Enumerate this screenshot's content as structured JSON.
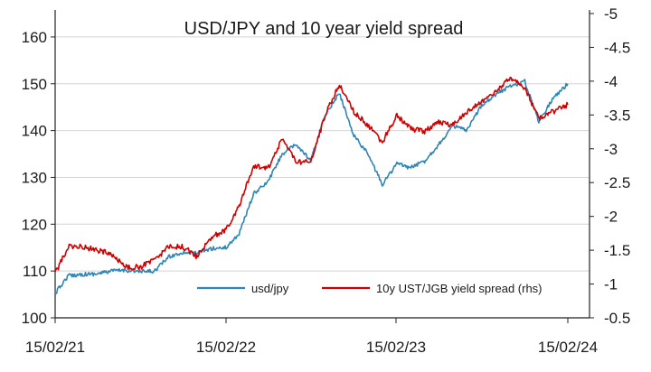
{
  "chart_data": {
    "type": "line",
    "title": "USD/JPY and 10 year yield spread",
    "x_range": [
      "2021-02-15",
      "2024-02-15"
    ],
    "x_ticks": [
      "15/02/21",
      "15/02/22",
      "15/02/23",
      "15/02/24"
    ],
    "y_left": {
      "range": [
        100,
        165
      ],
      "ticks": [
        100,
        110,
        120,
        130,
        140,
        150,
        160
      ]
    },
    "y_right": {
      "range": [
        -0.5,
        -5
      ],
      "inverted": true,
      "ticks": [
        -0.5,
        -1,
        -1.5,
        -2,
        -2.5,
        -3,
        -3.5,
        -4,
        -4.5,
        -5
      ],
      "tick_labels": [
        "-0.5",
        "-1",
        "-1.5",
        "-2",
        "-2.5",
        "-3",
        "-3.5",
        "-4",
        "-4.5",
        "-5"
      ]
    },
    "grid": "horizontal",
    "legend_position": "bottom-right",
    "series": [
      {
        "name": "usd/jpy",
        "axis": "left",
        "color": "#2e86b8",
        "points": [
          [
            "2021-02-15",
            105.2
          ],
          [
            "2021-03-15",
            109.0
          ],
          [
            "2021-04-15",
            109.3
          ],
          [
            "2021-05-15",
            109.4
          ],
          [
            "2021-06-15",
            110.0
          ],
          [
            "2021-07-15",
            110.2
          ],
          [
            "2021-08-15",
            109.8
          ],
          [
            "2021-09-15",
            110.0
          ],
          [
            "2021-10-15",
            113.0
          ],
          [
            "2021-11-15",
            114.0
          ],
          [
            "2021-12-15",
            113.8
          ],
          [
            "2022-01-15",
            114.8
          ],
          [
            "2022-02-15",
            115.0
          ],
          [
            "2022-03-15",
            118.0
          ],
          [
            "2022-04-15",
            126.5
          ],
          [
            "2022-05-15",
            129.0
          ],
          [
            "2022-06-15",
            135.0
          ],
          [
            "2022-07-15",
            137.0
          ],
          [
            "2022-08-15",
            133.5
          ],
          [
            "2022-09-15",
            143.5
          ],
          [
            "2022-10-15",
            148.0
          ],
          [
            "2022-11-15",
            139.0
          ],
          [
            "2022-12-15",
            135.0
          ],
          [
            "2023-01-15",
            128.5
          ],
          [
            "2023-02-15",
            133.0
          ],
          [
            "2023-03-15",
            132.0
          ],
          [
            "2023-04-15",
            133.5
          ],
          [
            "2023-05-15",
            137.0
          ],
          [
            "2023-06-15",
            141.0
          ],
          [
            "2023-07-15",
            140.0
          ],
          [
            "2023-08-15",
            145.5
          ],
          [
            "2023-09-15",
            147.8
          ],
          [
            "2023-10-15",
            149.5
          ],
          [
            "2023-11-15",
            150.5
          ],
          [
            "2023-12-15",
            142.0
          ],
          [
            "2024-01-15",
            147.0
          ],
          [
            "2024-02-15",
            150.0
          ]
        ]
      },
      {
        "name": "10y UST/JGB yield spread (rhs)",
        "axis": "right",
        "color": "#d00000",
        "points": [
          [
            "2021-02-15",
            -1.15
          ],
          [
            "2021-03-15",
            -1.55
          ],
          [
            "2021-04-15",
            -1.55
          ],
          [
            "2021-05-15",
            -1.5
          ],
          [
            "2021-06-15",
            -1.45
          ],
          [
            "2021-07-15",
            -1.25
          ],
          [
            "2021-08-15",
            -1.25
          ],
          [
            "2021-09-15",
            -1.35
          ],
          [
            "2021-10-15",
            -1.55
          ],
          [
            "2021-11-15",
            -1.55
          ],
          [
            "2021-12-15",
            -1.4
          ],
          [
            "2022-01-15",
            -1.7
          ],
          [
            "2022-02-15",
            -1.8
          ],
          [
            "2022-03-15",
            -2.15
          ],
          [
            "2022-04-15",
            -2.75
          ],
          [
            "2022-05-15",
            -2.7
          ],
          [
            "2022-06-15",
            -3.15
          ],
          [
            "2022-07-15",
            -2.8
          ],
          [
            "2022-08-15",
            -2.8
          ],
          [
            "2022-09-15",
            -3.5
          ],
          [
            "2022-10-15",
            -3.95
          ],
          [
            "2022-11-15",
            -3.55
          ],
          [
            "2022-12-15",
            -3.35
          ],
          [
            "2023-01-15",
            -3.1
          ],
          [
            "2023-02-15",
            -3.5
          ],
          [
            "2023-03-15",
            -3.3
          ],
          [
            "2023-04-15",
            -3.25
          ],
          [
            "2023-05-15",
            -3.4
          ],
          [
            "2023-06-15",
            -3.35
          ],
          [
            "2023-07-15",
            -3.55
          ],
          [
            "2023-08-15",
            -3.7
          ],
          [
            "2023-09-15",
            -3.85
          ],
          [
            "2023-10-15",
            -4.05
          ],
          [
            "2023-11-15",
            -3.9
          ],
          [
            "2023-12-15",
            -3.45
          ],
          [
            "2024-01-15",
            -3.55
          ],
          [
            "2024-02-15",
            -3.65
          ]
        ]
      }
    ]
  }
}
